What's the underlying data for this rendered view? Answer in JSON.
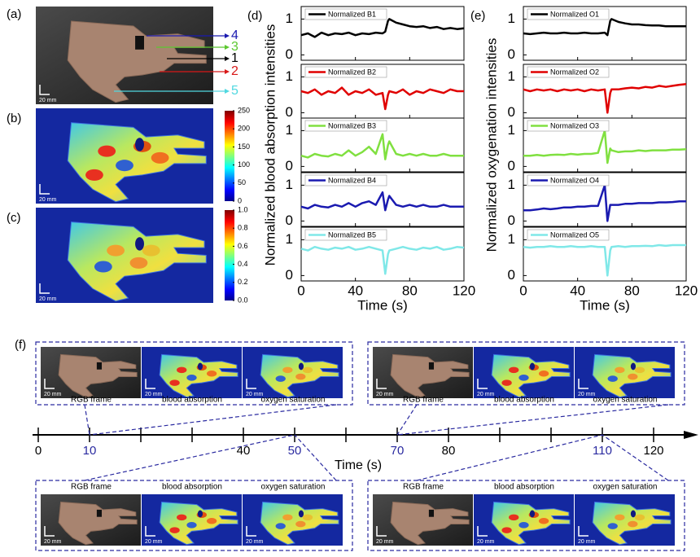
{
  "panels": {
    "a": {
      "label": "(a)",
      "scale": "20 mm",
      "markers": [
        {
          "label": "4",
          "color": "#1a1ab0"
        },
        {
          "label": "3",
          "color": "#5cc830"
        },
        {
          "label": "1",
          "color": "#000000"
        },
        {
          "label": "2",
          "color": "#d81818"
        },
        {
          "label": "5",
          "color": "#50d8e0"
        }
      ]
    },
    "b": {
      "label": "(b)",
      "scale": "20 mm",
      "clim": [
        0,
        250
      ],
      "cticks": [
        0,
        50,
        100,
        150,
        200,
        250
      ]
    },
    "c": {
      "label": "(c)",
      "scale": "20 mm",
      "clim": [
        0,
        1
      ],
      "cticks": [
        {
          "value": 0,
          "label": "0.0"
        },
        {
          "value": 0.2,
          "label": "0.2"
        },
        {
          "value": 0.4,
          "label": "0.4"
        },
        {
          "value": 0.6,
          "label": "0.6"
        },
        {
          "value": 0.8,
          "label": "0.8"
        },
        {
          "value": 1,
          "label": "1.0"
        }
      ]
    },
    "d": {
      "label": "(d)",
      "type": "line",
      "ylabel": "Normalized blood absorption intensities",
      "xlabel": "Time (s)",
      "xlim": [
        0,
        120
      ],
      "xticks": [
        0,
        40,
        80,
        120
      ],
      "ylim": [
        -0.15,
        1.35
      ],
      "yticks": [
        0,
        1
      ],
      "x": [
        0,
        5,
        10,
        15,
        20,
        25,
        30,
        35,
        40,
        45,
        50,
        55,
        60,
        62,
        64,
        65,
        70,
        75,
        80,
        85,
        90,
        95,
        100,
        105,
        110,
        115,
        120
      ],
      "series": [
        {
          "name": "Normalized B1",
          "color": "#000000",
          "values": [
            0.55,
            0.6,
            0.5,
            0.62,
            0.55,
            0.6,
            0.58,
            0.62,
            0.55,
            0.6,
            0.58,
            0.62,
            0.6,
            0.65,
            0.95,
            1.0,
            0.9,
            0.85,
            0.8,
            0.78,
            0.8,
            0.75,
            0.78,
            0.72,
            0.75,
            0.72,
            0.74
          ]
        },
        {
          "name": "Normalized B2",
          "color": "#e00000",
          "values": [
            0.6,
            0.55,
            0.65,
            0.5,
            0.6,
            0.55,
            0.7,
            0.5,
            0.6,
            0.55,
            0.65,
            0.5,
            0.55,
            0.1,
            0.5,
            0.6,
            0.55,
            0.65,
            0.5,
            0.6,
            0.55,
            0.65,
            0.6,
            0.55,
            0.65,
            0.6,
            0.6
          ]
        },
        {
          "name": "Normalized B3",
          "color": "#80e040",
          "values": [
            0.3,
            0.25,
            0.35,
            0.3,
            0.28,
            0.35,
            0.3,
            0.45,
            0.3,
            0.4,
            0.55,
            0.35,
            0.9,
            0.2,
            0.6,
            0.7,
            0.35,
            0.3,
            0.35,
            0.3,
            0.35,
            0.3,
            0.3,
            0.35,
            0.3,
            0.3,
            0.3
          ]
        },
        {
          "name": "Normalized B4",
          "color": "#1a1ab0",
          "values": [
            0.4,
            0.35,
            0.45,
            0.4,
            0.38,
            0.45,
            0.4,
            0.5,
            0.4,
            0.5,
            0.55,
            0.45,
            0.8,
            0.3,
            0.6,
            0.7,
            0.45,
            0.4,
            0.45,
            0.4,
            0.45,
            0.4,
            0.4,
            0.45,
            0.4,
            0.4,
            0.4
          ]
        },
        {
          "name": "Normalized B5",
          "color": "#80e8e8",
          "values": [
            0.75,
            0.7,
            0.8,
            0.75,
            0.72,
            0.78,
            0.75,
            0.8,
            0.72,
            0.75,
            0.8,
            0.75,
            0.7,
            0.05,
            0.6,
            0.7,
            0.75,
            0.8,
            0.75,
            0.72,
            0.78,
            0.75,
            0.8,
            0.72,
            0.75,
            0.8,
            0.78
          ]
        }
      ]
    },
    "e": {
      "label": "(e)",
      "type": "line",
      "ylabel": "Normalized oxygenation intensities",
      "xlabel": "Time (s)",
      "xlim": [
        0,
        120
      ],
      "xticks": [
        0,
        40,
        80,
        120
      ],
      "ylim": [
        -0.15,
        1.35
      ],
      "yticks": [
        0,
        1
      ],
      "x": [
        0,
        5,
        10,
        15,
        20,
        25,
        30,
        35,
        40,
        45,
        50,
        55,
        60,
        62,
        64,
        65,
        70,
        75,
        80,
        85,
        90,
        95,
        100,
        105,
        110,
        115,
        120
      ],
      "series": [
        {
          "name": "Normalized O1",
          "color": "#000000",
          "values": [
            0.6,
            0.58,
            0.6,
            0.62,
            0.6,
            0.6,
            0.62,
            0.6,
            0.6,
            0.62,
            0.6,
            0.6,
            0.62,
            0.55,
            0.95,
            1.0,
            0.92,
            0.88,
            0.85,
            0.85,
            0.83,
            0.82,
            0.82,
            0.8,
            0.8,
            0.8,
            0.8
          ]
        },
        {
          "name": "Normalized O2",
          "color": "#e00000",
          "values": [
            0.65,
            0.6,
            0.65,
            0.62,
            0.65,
            0.6,
            0.65,
            0.62,
            0.65,
            0.6,
            0.65,
            0.62,
            0.65,
            0.0,
            0.55,
            0.65,
            0.65,
            0.68,
            0.7,
            0.68,
            0.72,
            0.7,
            0.75,
            0.72,
            0.75,
            0.78,
            0.8
          ]
        },
        {
          "name": "Normalized O3",
          "color": "#80e040",
          "values": [
            0.3,
            0.3,
            0.32,
            0.3,
            0.32,
            0.33,
            0.32,
            0.35,
            0.33,
            0.35,
            0.35,
            0.38,
            1.0,
            0.1,
            0.5,
            0.45,
            0.4,
            0.42,
            0.42,
            0.45,
            0.43,
            0.45,
            0.45,
            0.45,
            0.47,
            0.47,
            0.48
          ]
        },
        {
          "name": "Normalized O4",
          "color": "#1a1ab0",
          "values": [
            0.3,
            0.3,
            0.32,
            0.35,
            0.33,
            0.35,
            0.38,
            0.38,
            0.4,
            0.4,
            0.42,
            0.42,
            1.0,
            0.0,
            0.45,
            0.45,
            0.45,
            0.48,
            0.48,
            0.5,
            0.5,
            0.5,
            0.52,
            0.52,
            0.53,
            0.55,
            0.55
          ]
        },
        {
          "name": "Normalized O5",
          "color": "#80e8e8",
          "values": [
            0.8,
            0.78,
            0.8,
            0.8,
            0.82,
            0.8,
            0.8,
            0.82,
            0.8,
            0.8,
            0.82,
            0.8,
            0.8,
            0.0,
            0.7,
            0.8,
            0.82,
            0.8,
            0.82,
            0.82,
            0.83,
            0.82,
            0.85,
            0.83,
            0.85,
            0.85,
            0.85
          ]
        }
      ]
    },
    "f": {
      "label": "(f)",
      "axis_label": "Time (s)",
      "highlight_color": "#2a2aa0",
      "ticks": [
        0,
        10,
        {
          "value": 20,
          "label": null
        },
        {
          "value": 30,
          "label": null
        },
        40,
        50,
        {
          "value": 60,
          "label": null
        },
        70,
        80,
        {
          "value": 90,
          "label": null
        },
        {
          "value": 100,
          "label": null
        },
        110,
        120
      ],
      "frames": [
        {
          "time": 10,
          "captions": [
            "RGB frame",
            "blood absorption",
            "oxygen saturation"
          ],
          "scale": "20 mm"
        },
        {
          "time": 70,
          "captions": [
            "RGB frame",
            "blood absorption",
            "oxygen saturation"
          ],
          "scale": "20 mm"
        },
        {
          "time": 50,
          "captions": [
            "RGB frame",
            "blood absorption",
            "oxygen saturation"
          ],
          "scale": "20 mm"
        },
        {
          "time": 110,
          "captions": [
            "RGB frame",
            "blood absorption",
            "oxygen saturation"
          ],
          "scale": "20 mm"
        }
      ]
    }
  }
}
